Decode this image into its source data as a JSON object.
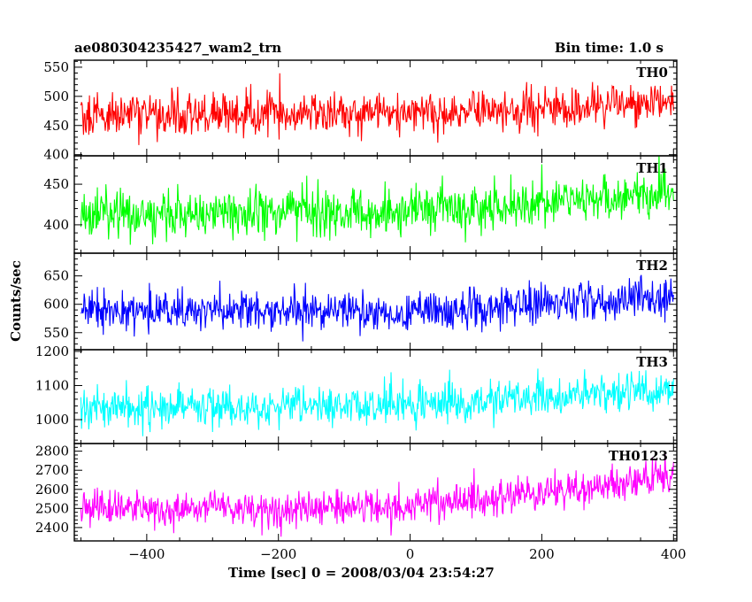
{
  "header": {
    "title_left": "ae080304235427_wam2_trn",
    "title_right": "Bin time: 1.0 s"
  },
  "axes": {
    "xlabel": "Time [sec] 0 = 2008/03/04 23:54:27",
    "ylabel": "Counts/sec"
  },
  "chart_data": {
    "type": "line",
    "x_range": [
      -510,
      405
    ],
    "x_ticks": [
      -400,
      -200,
      0,
      200,
      400
    ],
    "x_tick_labels": [
      "−400",
      "−200",
      "0",
      "200",
      "400"
    ],
    "bin_time_s": 1.0,
    "grid": false,
    "panels": [
      {
        "name": "TH0",
        "color": "#ff0000",
        "ylim": [
          398,
          562
        ],
        "y_ticks": [
          400,
          450,
          500,
          550
        ],
        "trend": {
          "x": [
            -500,
            -300,
            -100,
            0,
            200,
            400
          ],
          "y": [
            468,
            470,
            468,
            470,
            476,
            492
          ]
        },
        "noise_amplitude": 30
      },
      {
        "name": "TH1",
        "color": "#00ff00",
        "ylim": [
          365,
          485
        ],
        "y_ticks": [
          400,
          450
        ],
        "trend": {
          "x": [
            -500,
            -300,
            -100,
            0,
            200,
            400
          ],
          "y": [
            412,
            414,
            414,
            418,
            428,
            438
          ]
        },
        "noise_amplitude": 24
      },
      {
        "name": "TH2",
        "color": "#0000ff",
        "ylim": [
          520,
          690
        ],
        "y_ticks": [
          550,
          600,
          650
        ],
        "trend": {
          "x": [
            -500,
            -300,
            -100,
            0,
            200,
            400
          ],
          "y": [
            590,
            588,
            585,
            588,
            600,
            612
          ]
        },
        "noise_amplitude": 28
      },
      {
        "name": "TH3",
        "color": "#00ffff",
        "ylim": [
          930,
          1205
        ],
        "y_ticks": [
          1000,
          1100,
          1200
        ],
        "trend": {
          "x": [
            -500,
            -300,
            -100,
            0,
            200,
            400
          ],
          "y": [
            1040,
            1035,
            1038,
            1040,
            1065,
            1090
          ]
        },
        "noise_amplitude": 45
      },
      {
        "name": "TH0123",
        "color": "#ff00ff",
        "ylim": [
          2330,
          2840
        ],
        "y_ticks": [
          2400,
          2500,
          2600,
          2700,
          2800
        ],
        "trend": {
          "x": [
            -500,
            -300,
            -200,
            0,
            200,
            400
          ],
          "y": [
            2500,
            2510,
            2480,
            2520,
            2570,
            2680
          ]
        },
        "noise_amplitude": 80
      }
    ]
  }
}
